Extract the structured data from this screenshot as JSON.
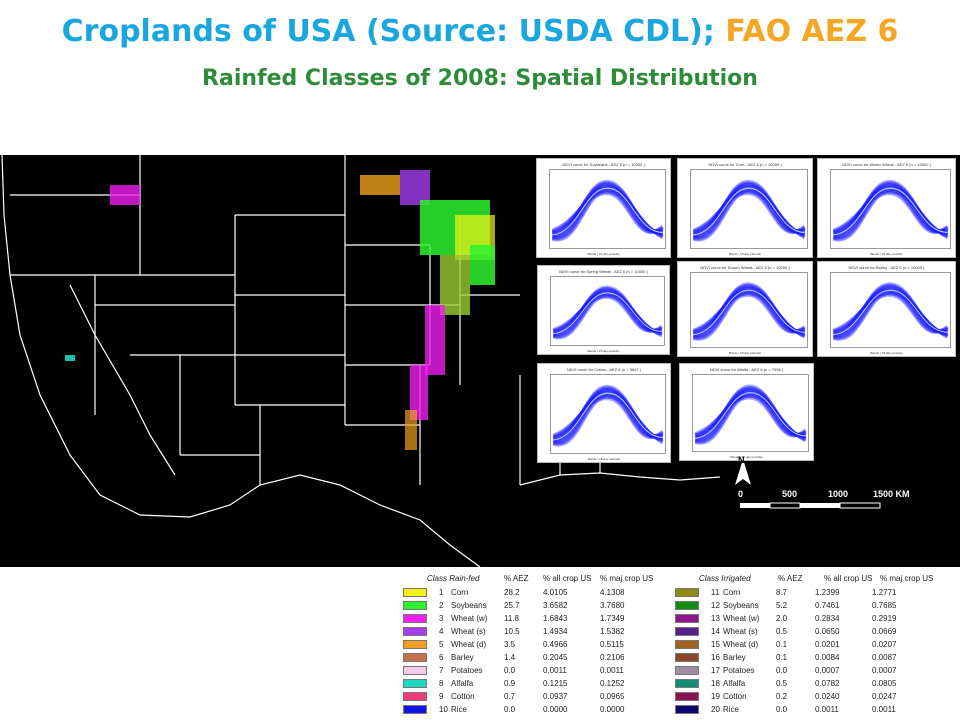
{
  "title": {
    "main": "Croplands of USA (Source: USDA CDL);",
    "accent": "FAO AEZ 6",
    "main_color": "#1aa7df",
    "accent_color": "#f5a623"
  },
  "subtitle": "Rainfed Classes of 2008: Spatial Distribution",
  "panels": [
    {
      "title": "NDVI curve for Soybeans - AEZ 6 (n = 10000 )",
      "xlabel": "Bands ( 15-day periods)"
    },
    {
      "title": "NDVI curve for Corn - AEZ 6 (n = 10000 )",
      "xlabel": "Bands ( 15-day periods)"
    },
    {
      "title": "NDVI curve for Winter Wheat - AEZ 6 (n = 10000 )",
      "xlabel": "Bands ( 15-day periods)"
    },
    {
      "title": "NDVI curve for Spring Wheat - AEZ 6 (n = 10000 )",
      "xlabel": "Bands ( 15-day periods)"
    },
    {
      "title": "NDVI curve for Durum Wheat - AEZ 6 (n = 10000 )",
      "xlabel": "Bands ( 15-day periods)"
    },
    {
      "title": "NDVI curve for Barley - AEZ 6 (n = 10000 )",
      "xlabel": "Bands ( 15-day periods)"
    },
    {
      "title": "NDVI curve for Cotton - AEZ 6 (n = 5847 )",
      "xlabel": "Bands ( 15-day periods)"
    },
    {
      "title": "NDVI curve for Alfalfa - AEZ 6 (n = 7096 )",
      "xlabel": "Bands ( 15-day periods)"
    }
  ],
  "north_arrow": {
    "label": "N"
  },
  "scale_bar": {
    "zero": "0",
    "t500": "500",
    "t1000": "1000",
    "t1500": "1500 KM"
  },
  "legend": {
    "rainfed_headers": {
      "cls": "Class Rain-fed",
      "aez": "% AEZ",
      "all": "% all crop US",
      "maj": "% maj crop US"
    },
    "irrigated_headers": {
      "cls": "Class Irrigated",
      "aez": "% AEZ",
      "all": "% all crop US",
      "maj": "% maj crop US"
    },
    "rainfed": [
      {
        "num": "1",
        "name": "Corn",
        "aez": "28.2",
        "all": "4.0105",
        "maj": "4.1308",
        "color": "#f2f21a"
      },
      {
        "num": "2",
        "name": "Soybeans",
        "aez": "25.7",
        "all": "3.6582",
        "maj": "3.7680",
        "color": "#2ef22e"
      },
      {
        "num": "3",
        "name": "Wheat (w)",
        "aez": "11.8",
        "all": "1.6843",
        "maj": "1.7349",
        "color": "#f01ef0"
      },
      {
        "num": "4",
        "name": "Wheat (s)",
        "aez": "10.5",
        "all": "1.4934",
        "maj": "1.5382",
        "color": "#a43ef0"
      },
      {
        "num": "5",
        "name": "Wheat (d)",
        "aez": "3.5",
        "all": "0.4966",
        "maj": "0.5115",
        "color": "#f0a01e"
      },
      {
        "num": "6",
        "name": "Barley",
        "aez": "1.4",
        "all": "0.2045",
        "maj": "0.2106",
        "color": "#c8704a"
      },
      {
        "num": "7",
        "name": "Potatoes",
        "aez": "0.0",
        "all": "0.0011",
        "maj": "0.0011",
        "color": "#f2cce8"
      },
      {
        "num": "8",
        "name": "Alfalfa",
        "aez": "0.9",
        "all": "0.1215",
        "maj": "0.1252",
        "color": "#1ed8c0"
      },
      {
        "num": "9",
        "name": "Cotton",
        "aez": "0.7",
        "all": "0.0937",
        "maj": "0.0965",
        "color": "#f03c7a"
      },
      {
        "num": "10",
        "name": "Rice",
        "aez": "0.0",
        "all": "0.0000",
        "maj": "0.0000",
        "color": "#1414e6"
      }
    ],
    "irrigated": [
      {
        "num": "11",
        "name": "Corn",
        "aez": "8.7",
        "all": "1.2399",
        "maj": "1.2771",
        "color": "#8c8c14"
      },
      {
        "num": "12",
        "name": "Soybeans",
        "aez": "5.2",
        "all": "0.7461",
        "maj": "0.7685",
        "color": "#148c14"
      },
      {
        "num": "13",
        "name": "Wheat (w)",
        "aez": "2.0",
        "all": "0.2834",
        "maj": "0.2919",
        "color": "#8c148c"
      },
      {
        "num": "14",
        "name": "Wheat (s)",
        "aez": "0.5",
        "all": "0.0650",
        "maj": "0.0669",
        "color": "#5a1e8c"
      },
      {
        "num": "15",
        "name": "Wheat (d)",
        "aez": "0.1",
        "all": "0.0201",
        "maj": "0.0207",
        "color": "#a0641e"
      },
      {
        "num": "16",
        "name": "Barley",
        "aez": "0.1",
        "all": "0.0084",
        "maj": "0.0087",
        "color": "#8c4628"
      },
      {
        "num": "17",
        "name": "Potatoes",
        "aez": "0.0",
        "all": "0.0007",
        "maj": "0.0007",
        "color": "#a08ca0"
      },
      {
        "num": "18",
        "name": "Alfalfa",
        "aez": "0.5",
        "all": "0.0782",
        "maj": "0.0805",
        "color": "#148c78"
      },
      {
        "num": "19",
        "name": "Cotton",
        "aez": "0.2",
        "all": "0.0240",
        "maj": "0.0247",
        "color": "#8c1450"
      },
      {
        "num": "20",
        "name": "Rice",
        "aez": "0.0",
        "all": "0.0011",
        "maj": "0.0011",
        "color": "#0a0a6e"
      }
    ]
  }
}
